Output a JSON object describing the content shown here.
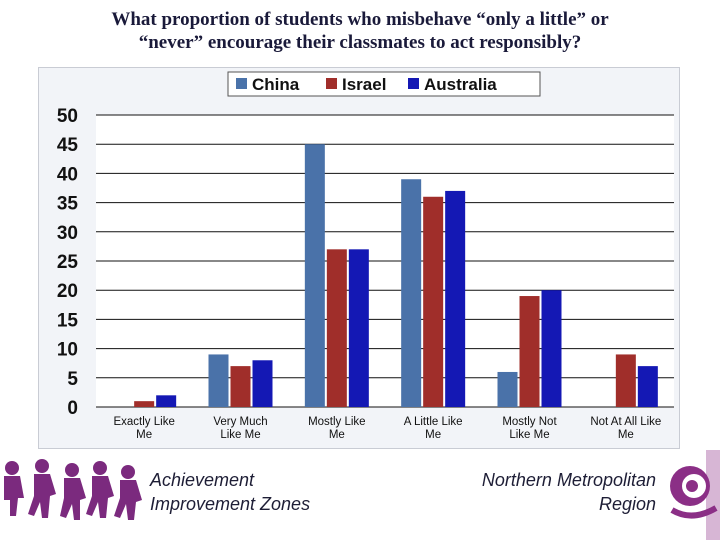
{
  "title_line1": "What proportion of students who misbehave “only a little” or",
  "title_line2": "“never” encourage their classmates to act responsibly?",
  "footer": {
    "left_line1": "Achievement",
    "left_line2": "Improvement Zones",
    "right_line1": "Northern Metropolitan",
    "right_line2": "Region"
  },
  "chart_data": {
    "type": "bar",
    "title": "",
    "xlabel": "",
    "ylabel": "",
    "ylim": [
      0,
      50
    ],
    "yticks": [
      0,
      5,
      10,
      15,
      20,
      25,
      30,
      35,
      40,
      45,
      50
    ],
    "grid": true,
    "legend_position": "top",
    "categories": [
      [
        "Exactly Like",
        "Me"
      ],
      [
        "Very Much",
        "Like Me"
      ],
      [
        "Mostly Like",
        "Me"
      ],
      [
        "A Little Like",
        "Me"
      ],
      [
        "Mostly Not",
        "Like Me"
      ],
      [
        "Not At All Like",
        "Me"
      ]
    ],
    "series": [
      {
        "name": "China",
        "color": "#4a72a9",
        "values": [
          0,
          9,
          45,
          39,
          6,
          0
        ]
      },
      {
        "name": "Israel",
        "color": "#a02e2a",
        "values": [
          1,
          7,
          27,
          36,
          19,
          9
        ]
      },
      {
        "name": "Australia",
        "color": "#1418b4",
        "values": [
          2,
          8,
          27,
          37,
          20,
          7
        ]
      }
    ]
  }
}
